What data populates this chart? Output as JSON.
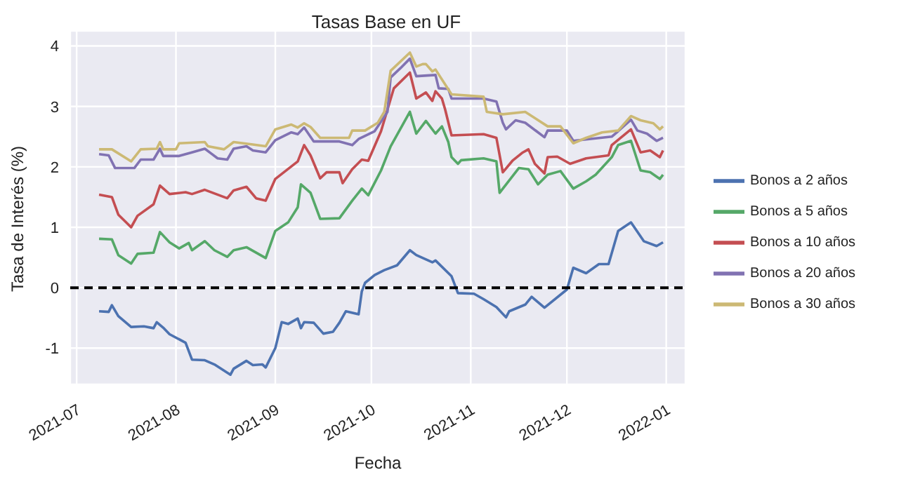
{
  "chart_data": {
    "type": "line",
    "title": "Tasas Base en UF",
    "xlabel": "Fecha",
    "ylabel": "Tasa de Interés (%)",
    "xlim": [
      "2021-06-29",
      "2022-01-07"
    ],
    "ylim": [
      -1.6,
      4.25
    ],
    "xticks": [
      "2021-07",
      "2021-08",
      "2021-09",
      "2021-10",
      "2021-11",
      "2021-12",
      "2022-01"
    ],
    "yticks": [
      -1,
      0,
      1,
      2,
      3,
      4
    ],
    "grid": true,
    "legend": "right",
    "ref_lines": [
      {
        "axis": "y",
        "value": 0,
        "color": "#000000",
        "line_style": "dashed"
      }
    ],
    "series": [
      {
        "name": "Bonos a 2 años",
        "color": "#4c72b0",
        "x": [
          "2021-07-08",
          "2021-07-11",
          "2021-07-12",
          "2021-07-14",
          "2021-07-18",
          "2021-07-22",
          "2021-07-25",
          "2021-07-26",
          "2021-07-28",
          "2021-07-30",
          "2021-08-04",
          "2021-08-06",
          "2021-08-10",
          "2021-08-13",
          "2021-08-18",
          "2021-08-19",
          "2021-08-23",
          "2021-08-25",
          "2021-08-28",
          "2021-08-29",
          "2021-09-01",
          "2021-09-03",
          "2021-09-05",
          "2021-09-08",
          "2021-09-09",
          "2021-09-10",
          "2021-09-13",
          "2021-09-16",
          "2021-09-19",
          "2021-09-21",
          "2021-09-23",
          "2021-09-27",
          "2021-09-28",
          "2021-09-29",
          "2021-10-02",
          "2021-10-05",
          "2021-10-09",
          "2021-10-13",
          "2021-10-15",
          "2021-10-20",
          "2021-10-21",
          "2021-10-26",
          "2021-10-28",
          "2021-11-02",
          "2021-11-05",
          "2021-11-09",
          "2021-11-12",
          "2021-11-13",
          "2021-11-18",
          "2021-11-20",
          "2021-11-24",
          "2021-12-01",
          "2021-12-03",
          "2021-12-07",
          "2021-12-11",
          "2021-12-14",
          "2021-12-17",
          "2021-12-21",
          "2021-12-25",
          "2021-12-29",
          "2021-12-31"
        ],
        "values": [
          -0.39,
          -0.4,
          -0.29,
          -0.47,
          -0.65,
          -0.64,
          -0.67,
          -0.57,
          -0.66,
          -0.77,
          -0.91,
          -1.19,
          -1.2,
          -1.27,
          -1.44,
          -1.34,
          -1.21,
          -1.28,
          -1.27,
          -1.32,
          -1.0,
          -0.57,
          -0.6,
          -0.51,
          -0.67,
          -0.57,
          -0.58,
          -0.76,
          -0.73,
          -0.58,
          -0.39,
          -0.44,
          -0.06,
          0.08,
          0.21,
          0.29,
          0.37,
          0.62,
          0.54,
          0.42,
          0.45,
          0.19,
          -0.09,
          -0.1,
          -0.19,
          -0.32,
          -0.49,
          -0.39,
          -0.28,
          -0.15,
          -0.33,
          -0.03,
          0.33,
          0.24,
          0.39,
          0.39,
          0.94,
          1.08,
          0.77,
          0.69,
          0.75
        ]
      },
      {
        "name": "Bonos a 5 años",
        "color": "#55a868",
        "x": [
          "2021-07-08",
          "2021-07-12",
          "2021-07-14",
          "2021-07-18",
          "2021-07-20",
          "2021-07-25",
          "2021-07-27",
          "2021-07-30",
          "2021-08-02",
          "2021-08-05",
          "2021-08-06",
          "2021-08-10",
          "2021-08-13",
          "2021-08-17",
          "2021-08-19",
          "2021-08-23",
          "2021-08-29",
          "2021-09-01",
          "2021-09-05",
          "2021-09-08",
          "2021-09-09",
          "2021-09-12",
          "2021-09-15",
          "2021-09-21",
          "2021-09-25",
          "2021-09-28",
          "2021-09-30",
          "2021-10-04",
          "2021-10-07",
          "2021-10-13",
          "2021-10-15",
          "2021-10-18",
          "2021-10-21",
          "2021-10-23",
          "2021-10-25",
          "2021-10-26",
          "2021-10-28",
          "2021-10-29",
          "2021-11-05",
          "2021-11-09",
          "2021-11-10",
          "2021-11-16",
          "2021-11-19",
          "2021-11-22",
          "2021-11-25",
          "2021-11-29",
          "2021-12-03",
          "2021-12-07",
          "2021-12-10",
          "2021-12-15",
          "2021-12-17",
          "2021-12-21",
          "2021-12-24",
          "2021-12-27",
          "2021-12-30",
          "2021-12-31"
        ],
        "values": [
          0.81,
          0.8,
          0.54,
          0.4,
          0.56,
          0.58,
          0.92,
          0.75,
          0.65,
          0.74,
          0.62,
          0.77,
          0.62,
          0.51,
          0.62,
          0.67,
          0.49,
          0.94,
          1.08,
          1.33,
          1.71,
          1.57,
          1.14,
          1.15,
          1.44,
          1.64,
          1.53,
          1.94,
          2.34,
          2.91,
          2.55,
          2.76,
          2.55,
          2.67,
          2.41,
          2.16,
          2.05,
          2.11,
          2.14,
          2.09,
          1.57,
          1.98,
          1.96,
          1.71,
          1.87,
          1.93,
          1.64,
          1.76,
          1.87,
          2.16,
          2.36,
          2.43,
          1.94,
          1.91,
          1.8,
          1.87
        ]
      },
      {
        "name": "Bonos a 10 años",
        "color": "#c44e52",
        "x": [
          "2021-07-08",
          "2021-07-12",
          "2021-07-14",
          "2021-07-18",
          "2021-07-20",
          "2021-07-25",
          "2021-07-27",
          "2021-07-30",
          "2021-08-04",
          "2021-08-06",
          "2021-08-10",
          "2021-08-17",
          "2021-08-19",
          "2021-08-23",
          "2021-08-26",
          "2021-08-29",
          "2021-09-01",
          "2021-09-08",
          "2021-09-10",
          "2021-09-12",
          "2021-09-15",
          "2021-09-17",
          "2021-09-21",
          "2021-09-22",
          "2021-09-25",
          "2021-09-28",
          "2021-09-30",
          "2021-10-04",
          "2021-10-08",
          "2021-10-13",
          "2021-10-15",
          "2021-10-18",
          "2021-10-20",
          "2021-10-21",
          "2021-10-23",
          "2021-10-24",
          "2021-10-26",
          "2021-11-05",
          "2021-11-09",
          "2021-11-11",
          "2021-11-14",
          "2021-11-17",
          "2021-11-19",
          "2021-11-21",
          "2021-11-24",
          "2021-11-25",
          "2021-11-28",
          "2021-12-02",
          "2021-12-07",
          "2021-12-14",
          "2021-12-15",
          "2021-12-21",
          "2021-12-24",
          "2021-12-27",
          "2021-12-30",
          "2021-12-31"
        ],
        "values": [
          1.54,
          1.5,
          1.21,
          1.0,
          1.19,
          1.38,
          1.69,
          1.55,
          1.58,
          1.55,
          1.62,
          1.48,
          1.61,
          1.67,
          1.48,
          1.44,
          1.8,
          2.09,
          2.36,
          2.19,
          1.81,
          1.91,
          1.91,
          1.73,
          1.96,
          2.12,
          2.1,
          2.59,
          3.3,
          3.56,
          3.13,
          3.23,
          3.09,
          3.25,
          3.13,
          2.95,
          2.52,
          2.54,
          2.48,
          1.91,
          2.1,
          2.23,
          2.29,
          2.05,
          1.89,
          2.16,
          2.17,
          2.05,
          2.14,
          2.19,
          2.36,
          2.62,
          2.24,
          2.27,
          2.16,
          2.27
        ]
      },
      {
        "name": "Bonos a 20 años",
        "color": "#8172b2",
        "x": [
          "2021-07-08",
          "2021-07-11",
          "2021-07-13",
          "2021-07-19",
          "2021-07-21",
          "2021-07-25",
          "2021-07-27",
          "2021-07-28",
          "2021-08-02",
          "2021-08-06",
          "2021-08-10",
          "2021-08-12",
          "2021-08-14",
          "2021-08-17",
          "2021-08-19",
          "2021-08-23",
          "2021-08-25",
          "2021-08-29",
          "2021-09-01",
          "2021-09-06",
          "2021-09-08",
          "2021-09-10",
          "2021-09-13",
          "2021-09-21",
          "2021-09-25",
          "2021-09-27",
          "2021-10-02",
          "2021-10-06",
          "2021-10-07",
          "2021-10-10",
          "2021-10-13",
          "2021-10-15",
          "2021-10-21",
          "2021-10-22",
          "2021-10-25",
          "2021-10-26",
          "2021-11-05",
          "2021-11-09",
          "2021-11-11",
          "2021-11-12",
          "2021-11-15",
          "2021-11-18",
          "2021-11-24",
          "2021-11-25",
          "2021-12-01",
          "2021-12-03",
          "2021-12-15",
          "2021-12-17",
          "2021-12-21",
          "2021-12-23",
          "2021-12-26",
          "2021-12-29",
          "2021-12-31"
        ],
        "values": [
          2.21,
          2.19,
          1.98,
          1.98,
          2.12,
          2.12,
          2.3,
          2.18,
          2.18,
          2.24,
          2.3,
          2.22,
          2.14,
          2.12,
          2.3,
          2.34,
          2.27,
          2.24,
          2.44,
          2.57,
          2.54,
          2.65,
          2.42,
          2.42,
          2.36,
          2.46,
          2.59,
          2.91,
          3.48,
          3.63,
          3.79,
          3.5,
          3.52,
          3.3,
          3.29,
          3.13,
          3.13,
          3.08,
          2.73,
          2.62,
          2.77,
          2.73,
          2.49,
          2.6,
          2.6,
          2.43,
          2.5,
          2.59,
          2.78,
          2.6,
          2.55,
          2.43,
          2.48
        ]
      },
      {
        "name": "Bonos a 30 años",
        "color": "#ccb974",
        "x": [
          "2021-07-08",
          "2021-07-12",
          "2021-07-18",
          "2021-07-21",
          "2021-07-26",
          "2021-07-27",
          "2021-07-28",
          "2021-08-01",
          "2021-08-02",
          "2021-08-10",
          "2021-08-11",
          "2021-08-16",
          "2021-08-19",
          "2021-08-25",
          "2021-08-29",
          "2021-09-01",
          "2021-09-06",
          "2021-09-08",
          "2021-09-10",
          "2021-09-12",
          "2021-09-15",
          "2021-09-24",
          "2021-09-25",
          "2021-09-29",
          "2021-10-03",
          "2021-10-05",
          "2021-10-07",
          "2021-10-13",
          "2021-10-15",
          "2021-10-17",
          "2021-10-18",
          "2021-10-20",
          "2021-10-21",
          "2021-10-26",
          "2021-11-05",
          "2021-11-06",
          "2021-11-11",
          "2021-11-18",
          "2021-11-25",
          "2021-11-29",
          "2021-12-03",
          "2021-12-07",
          "2021-12-12",
          "2021-12-17",
          "2021-12-21",
          "2021-12-24",
          "2021-12-28",
          "2021-12-30",
          "2021-12-31"
        ],
        "values": [
          2.29,
          2.29,
          2.09,
          2.29,
          2.3,
          2.41,
          2.29,
          2.29,
          2.39,
          2.41,
          2.34,
          2.29,
          2.41,
          2.37,
          2.34,
          2.62,
          2.7,
          2.65,
          2.72,
          2.66,
          2.48,
          2.48,
          2.6,
          2.6,
          2.73,
          2.91,
          3.59,
          3.89,
          3.66,
          3.7,
          3.7,
          3.58,
          3.61,
          3.2,
          3.16,
          2.91,
          2.87,
          2.91,
          2.67,
          2.67,
          2.39,
          2.48,
          2.57,
          2.6,
          2.84,
          2.77,
          2.72,
          2.62,
          2.67
        ]
      }
    ]
  }
}
